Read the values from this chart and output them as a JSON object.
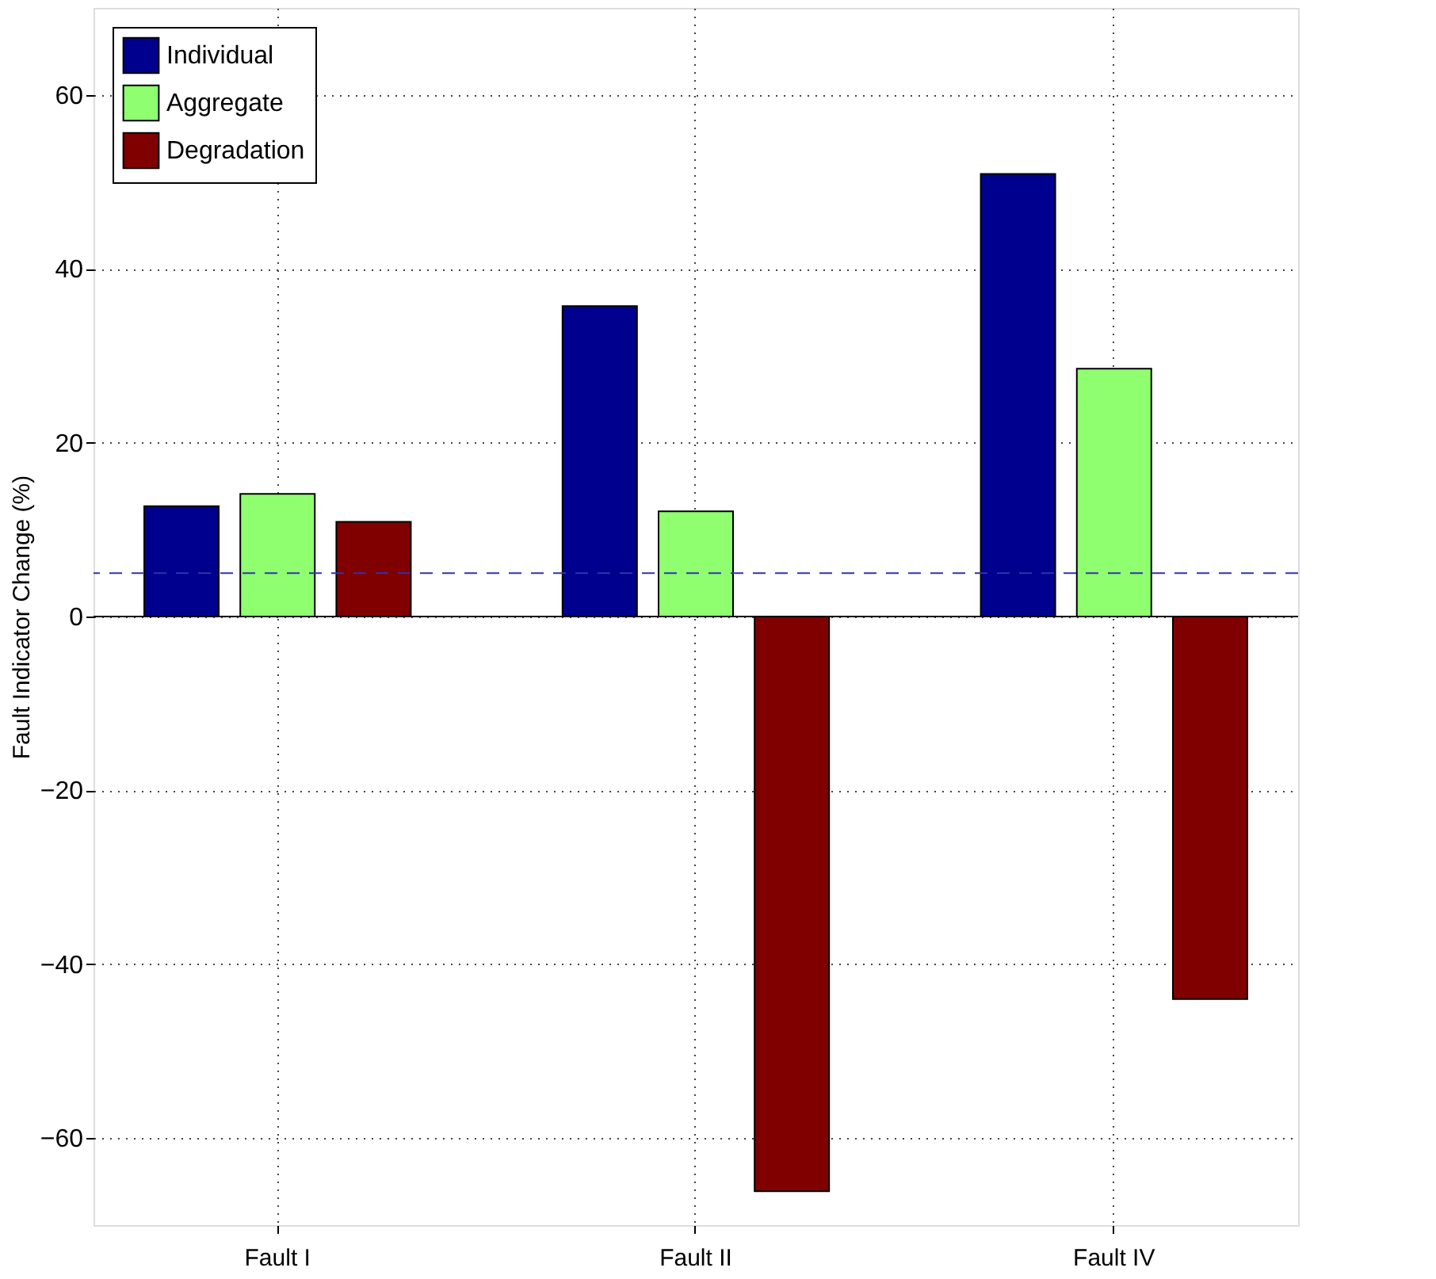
{
  "chart_data": {
    "type": "bar",
    "ylabel": "Fault Indicator Change (%)",
    "categories": [
      "Fault I",
      "Fault II",
      "Fault IV"
    ],
    "series": [
      {
        "name": "Individual",
        "color": "#00008f",
        "values": [
          12.7,
          35.7,
          50.9
        ]
      },
      {
        "name": "Aggregate",
        "color": "#8fff70",
        "values": [
          14.1,
          12.1,
          28.5
        ]
      },
      {
        "name": "Degradation",
        "color": "#800000",
        "values": [
          10.9,
          -66.1,
          -44.0
        ]
      }
    ],
    "ylim": [
      -70,
      70
    ],
    "yticks": [
      -60,
      -40,
      -20,
      0,
      20,
      40,
      60
    ],
    "ref_lines": [
      {
        "axis": "y",
        "value": 5,
        "color": "#3333aa",
        "line_style": "dashed"
      },
      {
        "axis": "y",
        "value": 0,
        "color": "#000000",
        "line_style": "solid"
      }
    ],
    "grid": true,
    "legend": "top left"
  }
}
